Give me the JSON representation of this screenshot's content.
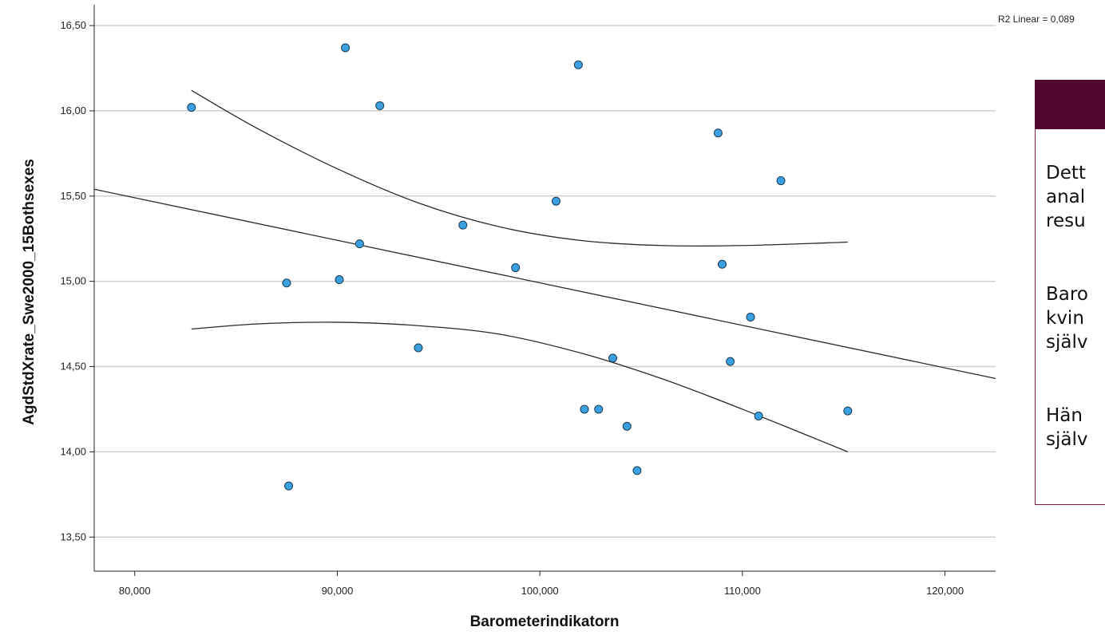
{
  "chart_data": {
    "type": "scatter",
    "title": "",
    "xlabel": "Barometerindikatorn",
    "ylabel": "AgdStdXrate_Swe2000_15Bothsexes",
    "xlim": [
      78000,
      122500
    ],
    "ylim": [
      13.3,
      16.65
    ],
    "xticks": [
      80000,
      90000,
      100000,
      110000,
      120000
    ],
    "xtick_labels": [
      "80,000",
      "90,000",
      "100,000",
      "110,000",
      "120,000"
    ],
    "yticks": [
      13.5,
      14.0,
      14.5,
      15.0,
      15.5,
      16.0,
      16.5
    ],
    "ytick_labels": [
      "13,50",
      "14,00",
      "14,50",
      "15,00",
      "15,50",
      "16,00",
      "16,50"
    ],
    "grid": "horizontal",
    "point_color": "#3aa0e0",
    "r2_label": "R2 Linear = 0,089",
    "points": [
      {
        "x": 82800,
        "y": 16.02
      },
      {
        "x": 87500,
        "y": 14.99
      },
      {
        "x": 87600,
        "y": 13.8
      },
      {
        "x": 90100,
        "y": 15.01
      },
      {
        "x": 90400,
        "y": 16.37
      },
      {
        "x": 91100,
        "y": 15.22
      },
      {
        "x": 92100,
        "y": 16.03
      },
      {
        "x": 94000,
        "y": 14.61
      },
      {
        "x": 96200,
        "y": 15.33
      },
      {
        "x": 98800,
        "y": 15.08
      },
      {
        "x": 100800,
        "y": 15.47
      },
      {
        "x": 101900,
        "y": 16.27
      },
      {
        "x": 102200,
        "y": 14.25
      },
      {
        "x": 102900,
        "y": 14.25
      },
      {
        "x": 103600,
        "y": 14.55
      },
      {
        "x": 104300,
        "y": 14.15
      },
      {
        "x": 104800,
        "y": 13.89
      },
      {
        "x": 108800,
        "y": 15.87
      },
      {
        "x": 109000,
        "y": 15.1
      },
      {
        "x": 109400,
        "y": 14.53
      },
      {
        "x": 110400,
        "y": 14.79
      },
      {
        "x": 110800,
        "y": 14.21
      },
      {
        "x": 111900,
        "y": 15.59
      },
      {
        "x": 115200,
        "y": 14.24
      }
    ],
    "fit_line": {
      "x": [
        78000,
        122500
      ],
      "y": [
        15.54,
        14.43
      ]
    },
    "ci_upper": {
      "x": [
        82800,
        86000,
        90000,
        94000,
        98000,
        102000,
        106000,
        110000,
        115200
      ],
      "y": [
        16.12,
        15.9,
        15.66,
        15.46,
        15.32,
        15.24,
        15.21,
        15.21,
        15.23
      ]
    },
    "ci_lower": {
      "x": [
        82800,
        86000,
        90000,
        94000,
        98000,
        102000,
        106000,
        110000,
        115200
      ],
      "y": [
        14.72,
        14.75,
        14.76,
        14.74,
        14.69,
        14.58,
        14.43,
        14.25,
        14.0
      ]
    }
  },
  "panel": {
    "header_color": "#52082e",
    "paragraphs": [
      "Dett\nanal\nresu",
      "Baro\nkvin\nsjälv",
      "Hän\nsjälv"
    ]
  }
}
